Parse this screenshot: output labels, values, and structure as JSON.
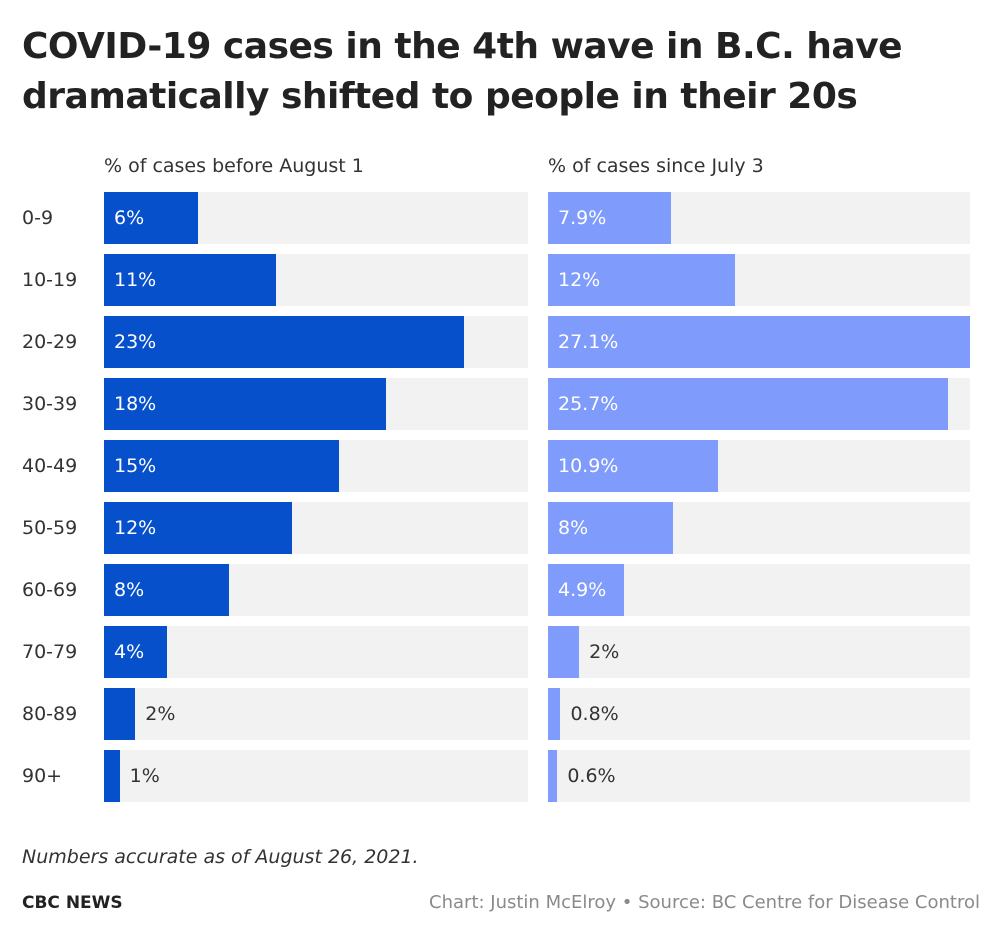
{
  "chart_data": {
    "type": "bar",
    "orientation": "horizontal",
    "title": "COVID-19 cases in the 4th wave in B.C. have dramatically shifted to people in their 20s",
    "categories": [
      "0-9",
      "10-19",
      "20-29",
      "30-39",
      "40-49",
      "50-59",
      "60-69",
      "70-79",
      "80-89",
      "90+"
    ],
    "series": [
      {
        "name": "% of cases before August 1",
        "values": [
          6,
          11,
          23,
          18,
          15,
          12,
          8,
          4,
          2,
          1
        ],
        "labels": [
          "6%",
          "11%",
          "23%",
          "18%",
          "15%",
          "12%",
          "8%",
          "4%",
          "2%",
          "1%"
        ],
        "color": "#0750cc"
      },
      {
        "name": "% of cases since July 3",
        "values": [
          7.9,
          12,
          27.1,
          25.7,
          10.9,
          8,
          4.9,
          2,
          0.8,
          0.6
        ],
        "labels": [
          "7.9%",
          "12%",
          "27.1%",
          "25.7%",
          "10.9%",
          "8%",
          "4.9%",
          "2%",
          "0.8%",
          "0.6%"
        ],
        "color": "#7f9bfb"
      }
    ],
    "xlim": [
      0,
      27.1
    ],
    "grid": false,
    "track_color": "#f2f2f2"
  },
  "footer": {
    "note": "Numbers accurate as of August 26, 2021.",
    "brand": "CBC NEWS",
    "credit": "Chart: Justin McElroy • Source: BC Centre for Disease Control"
  }
}
